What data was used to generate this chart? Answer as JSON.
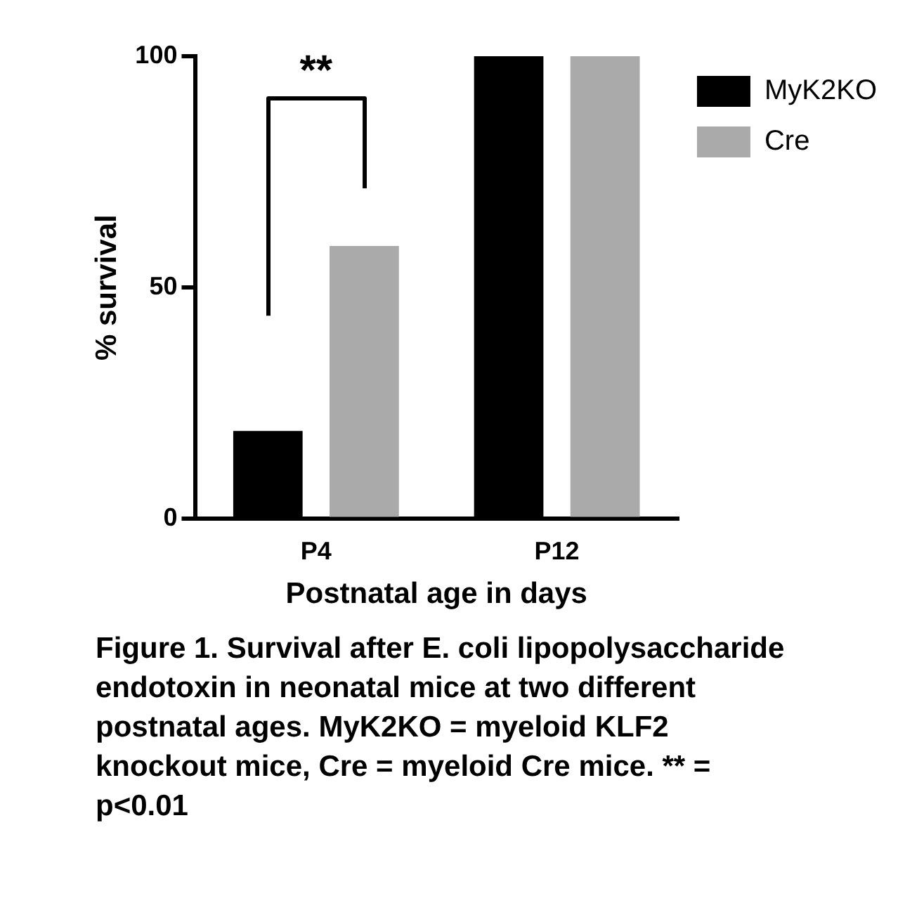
{
  "chart_data": {
    "type": "bar",
    "xlabel": "Postnatal age in days",
    "ylabel": "% survival",
    "categories": [
      "P4",
      "P12"
    ],
    "series": [
      {
        "name": "MyK2KO",
        "color": "#000000",
        "values": [
          19,
          100
        ]
      },
      {
        "name": "Cre",
        "color": "#aaaaaa",
        "values": [
          59,
          100
        ]
      }
    ],
    "ylim": [
      0,
      100
    ],
    "yticks": [
      0,
      50,
      100
    ],
    "grid": false,
    "legend": "top right",
    "annotations": [
      "**",
      "Figure 1. Survival after E. coli lipopolysaccharide endotoxin in neonatal mice at two different postnatal ages. MyK2KO = myeloid KLF2 knockout mice, Cre = myeloid Cre mice. ** = p<0.01"
    ]
  }
}
